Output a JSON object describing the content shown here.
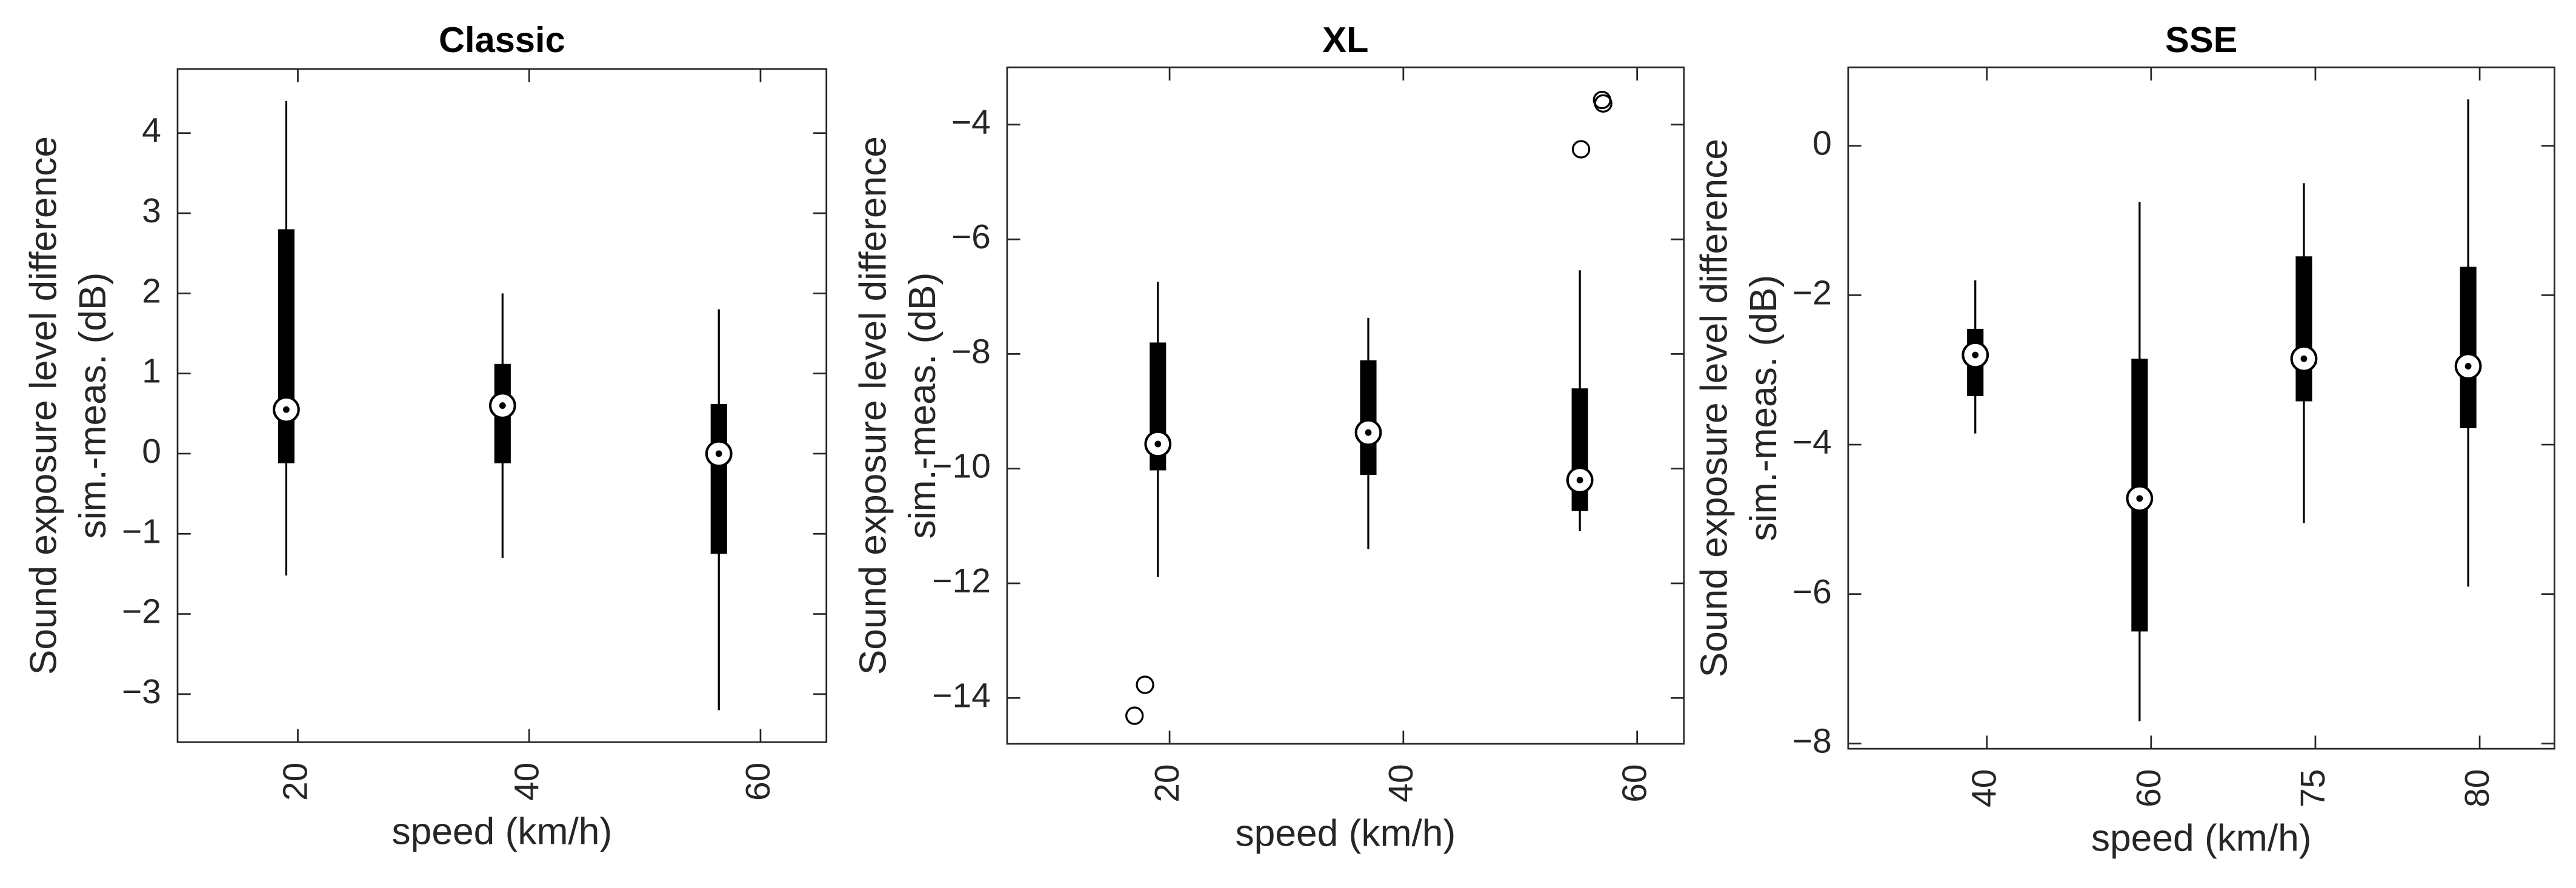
{
  "chart_data": [
    {
      "type": "box",
      "title": "Classic",
      "xlabel": "speed (km/h)",
      "ylabel": [
        "Sound exposure level difference",
        "sim.-meas. (dB)"
      ],
      "x": [
        19.0,
        37.7,
        56.4
      ],
      "xlim": [
        9.6,
        65.7
      ],
      "xticks": [
        20,
        40,
        60
      ],
      "ylim": [
        -3.6,
        4.8
      ],
      "yticks": [
        {
          "value": -3,
          "label": "−3"
        },
        {
          "value": -2,
          "label": "−2"
        },
        {
          "value": -1,
          "label": "−1"
        },
        0,
        1,
        2,
        3,
        4
      ],
      "color": "#000000",
      "boxes": [
        {
          "whisker_low": -1.52,
          "q1": -0.12,
          "median": 0.55,
          "q3": 2.8,
          "whisker_high": 4.4
        },
        {
          "whisker_low": -1.3,
          "q1": -0.12,
          "median": 0.6,
          "q3": 1.12,
          "whisker_high": 2.0
        },
        {
          "whisker_low": -3.2,
          "q1": -1.25,
          "median": 0.0,
          "q3": 0.62,
          "whisker_high": 1.8
        }
      ]
    },
    {
      "type": "box",
      "title": "XL",
      "xlabel": "speed (km/h)",
      "ylabel": [
        "Sound exposure level difference",
        "sim.-meas. (dB)"
      ],
      "x": [
        19.0,
        37.0,
        55.1
      ],
      "xlim": [
        6.1,
        64.0
      ],
      "xticks": [
        20,
        40,
        60
      ],
      "ylim": [
        -14.8,
        -3.0
      ],
      "yticks": [
        {
          "value": -14,
          "label": "−14"
        },
        {
          "value": -12,
          "label": "−12"
        },
        {
          "value": -10,
          "label": "−10"
        },
        {
          "value": -8,
          "label": "−8"
        },
        {
          "value": -6,
          "label": "−6"
        },
        {
          "value": -4,
          "label": "−4"
        }
      ],
      "color": "#000000",
      "boxes": [
        {
          "whisker_low": -11.89,
          "q1": -10.03,
          "median": -9.57,
          "q3": -7.8,
          "whisker_high": -6.74,
          "outliers": [
            {
              "x": 17.9,
              "y": -13.77
            },
            {
              "x": 17.0,
              "y": -14.31
            }
          ]
        },
        {
          "whisker_low": -11.4,
          "q1": -10.11,
          "median": -9.37,
          "q3": -8.11,
          "whisker_high": -7.37
        },
        {
          "whisker_low": -11.09,
          "q1": -10.74,
          "median": -10.2,
          "q3": -8.6,
          "whisker_high": -6.54,
          "outliers": [
            {
              "x": 55.2,
              "y": -4.43
            },
            {
              "x": 57.0,
              "y": -3.57
            },
            {
              "x": 57.1,
              "y": -3.63
            }
          ]
        }
      ]
    },
    {
      "type": "box",
      "title": "SSE",
      "xlabel": "speed (km/h)",
      "ylabel": [
        "Sound exposure level difference",
        "sim.-meas. (dB)"
      ],
      "categories": [
        "40",
        "60",
        "75",
        "80"
      ],
      "ylim": [
        -8.07,
        1.05
      ],
      "yticks": [
        {
          "value": -8,
          "label": "−8"
        },
        {
          "value": -6,
          "label": "−6"
        },
        {
          "value": -4,
          "label": "−4"
        },
        {
          "value": -2,
          "label": "−2"
        },
        0
      ],
      "color": "#000000",
      "boxes": [
        {
          "whisker_low": -3.85,
          "q1": -3.35,
          "median": -2.8,
          "q3": -2.45,
          "whisker_high": -1.8
        },
        {
          "whisker_low": -7.7,
          "q1": -6.5,
          "median": -4.72,
          "q3": -2.85,
          "whisker_high": -0.75
        },
        {
          "whisker_low": -5.05,
          "q1": -3.42,
          "median": -2.85,
          "q3": -1.48,
          "whisker_high": -0.5
        },
        {
          "whisker_low": -5.9,
          "q1": -3.78,
          "median": -2.95,
          "q3": -1.62,
          "whisker_high": 0.62
        }
      ]
    }
  ]
}
